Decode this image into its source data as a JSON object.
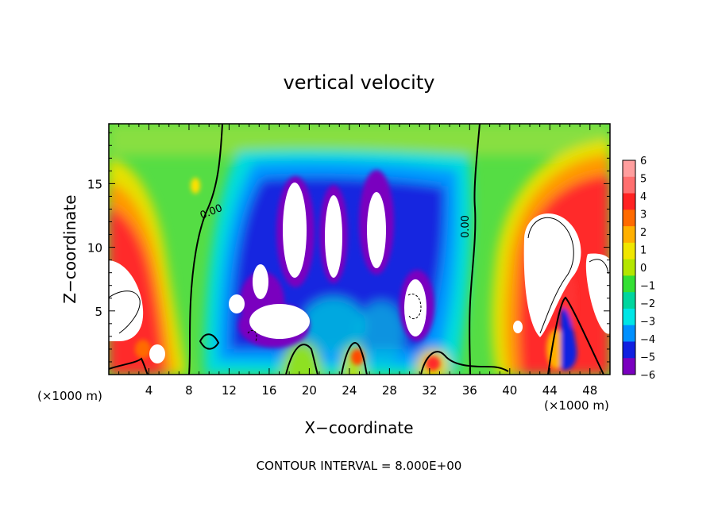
{
  "chart_data": {
    "type": "heatmap",
    "title": "vertical velocity",
    "xlabel": "X−coordinate",
    "ylabel": "Z−coordinate",
    "x_unit_left": "(×1000 m)",
    "x_unit_right": "(×1000 m)",
    "footer": "CONTOUR INTERVAL = 8.000E+00",
    "xlim": [
      0,
      50
    ],
    "ylim": [
      0,
      19.7
    ],
    "xticks": [
      "4",
      "8",
      "12",
      "16",
      "20",
      "24",
      "28",
      "32",
      "36",
      "40",
      "44",
      "48"
    ],
    "xtick_values": [
      4,
      8,
      12,
      16,
      20,
      24,
      28,
      32,
      36,
      40,
      44,
      48
    ],
    "yticks": [
      "5",
      "10",
      "15"
    ],
    "ytick_values": [
      5,
      10,
      15
    ],
    "contour_labels": [
      {
        "text": "0.00",
        "x": 9.9,
        "z": 12.7
      },
      {
        "text": "0.00",
        "x": 36.0,
        "z": 11.8
      }
    ],
    "colorbar": {
      "levels": [
        "6",
        "5",
        "4",
        "3",
        "2",
        "1",
        "0",
        "−1",
        "−2",
        "−3",
        "−4",
        "−5",
        "−6"
      ],
      "level_values": [
        6,
        5,
        4,
        3,
        2,
        1,
        0,
        -1,
        -2,
        -3,
        -4,
        -5,
        -6
      ],
      "colors": [
        "#ff9e9e",
        "#ff6f6f",
        "#ff2222",
        "#ff6a00",
        "#ffb000",
        "#f0e600",
        "#b4e600",
        "#34e034",
        "#00d69e",
        "#00e6e6",
        "#0090ff",
        "#1020e0",
        "#7a00bf"
      ]
    },
    "grid": false
  }
}
